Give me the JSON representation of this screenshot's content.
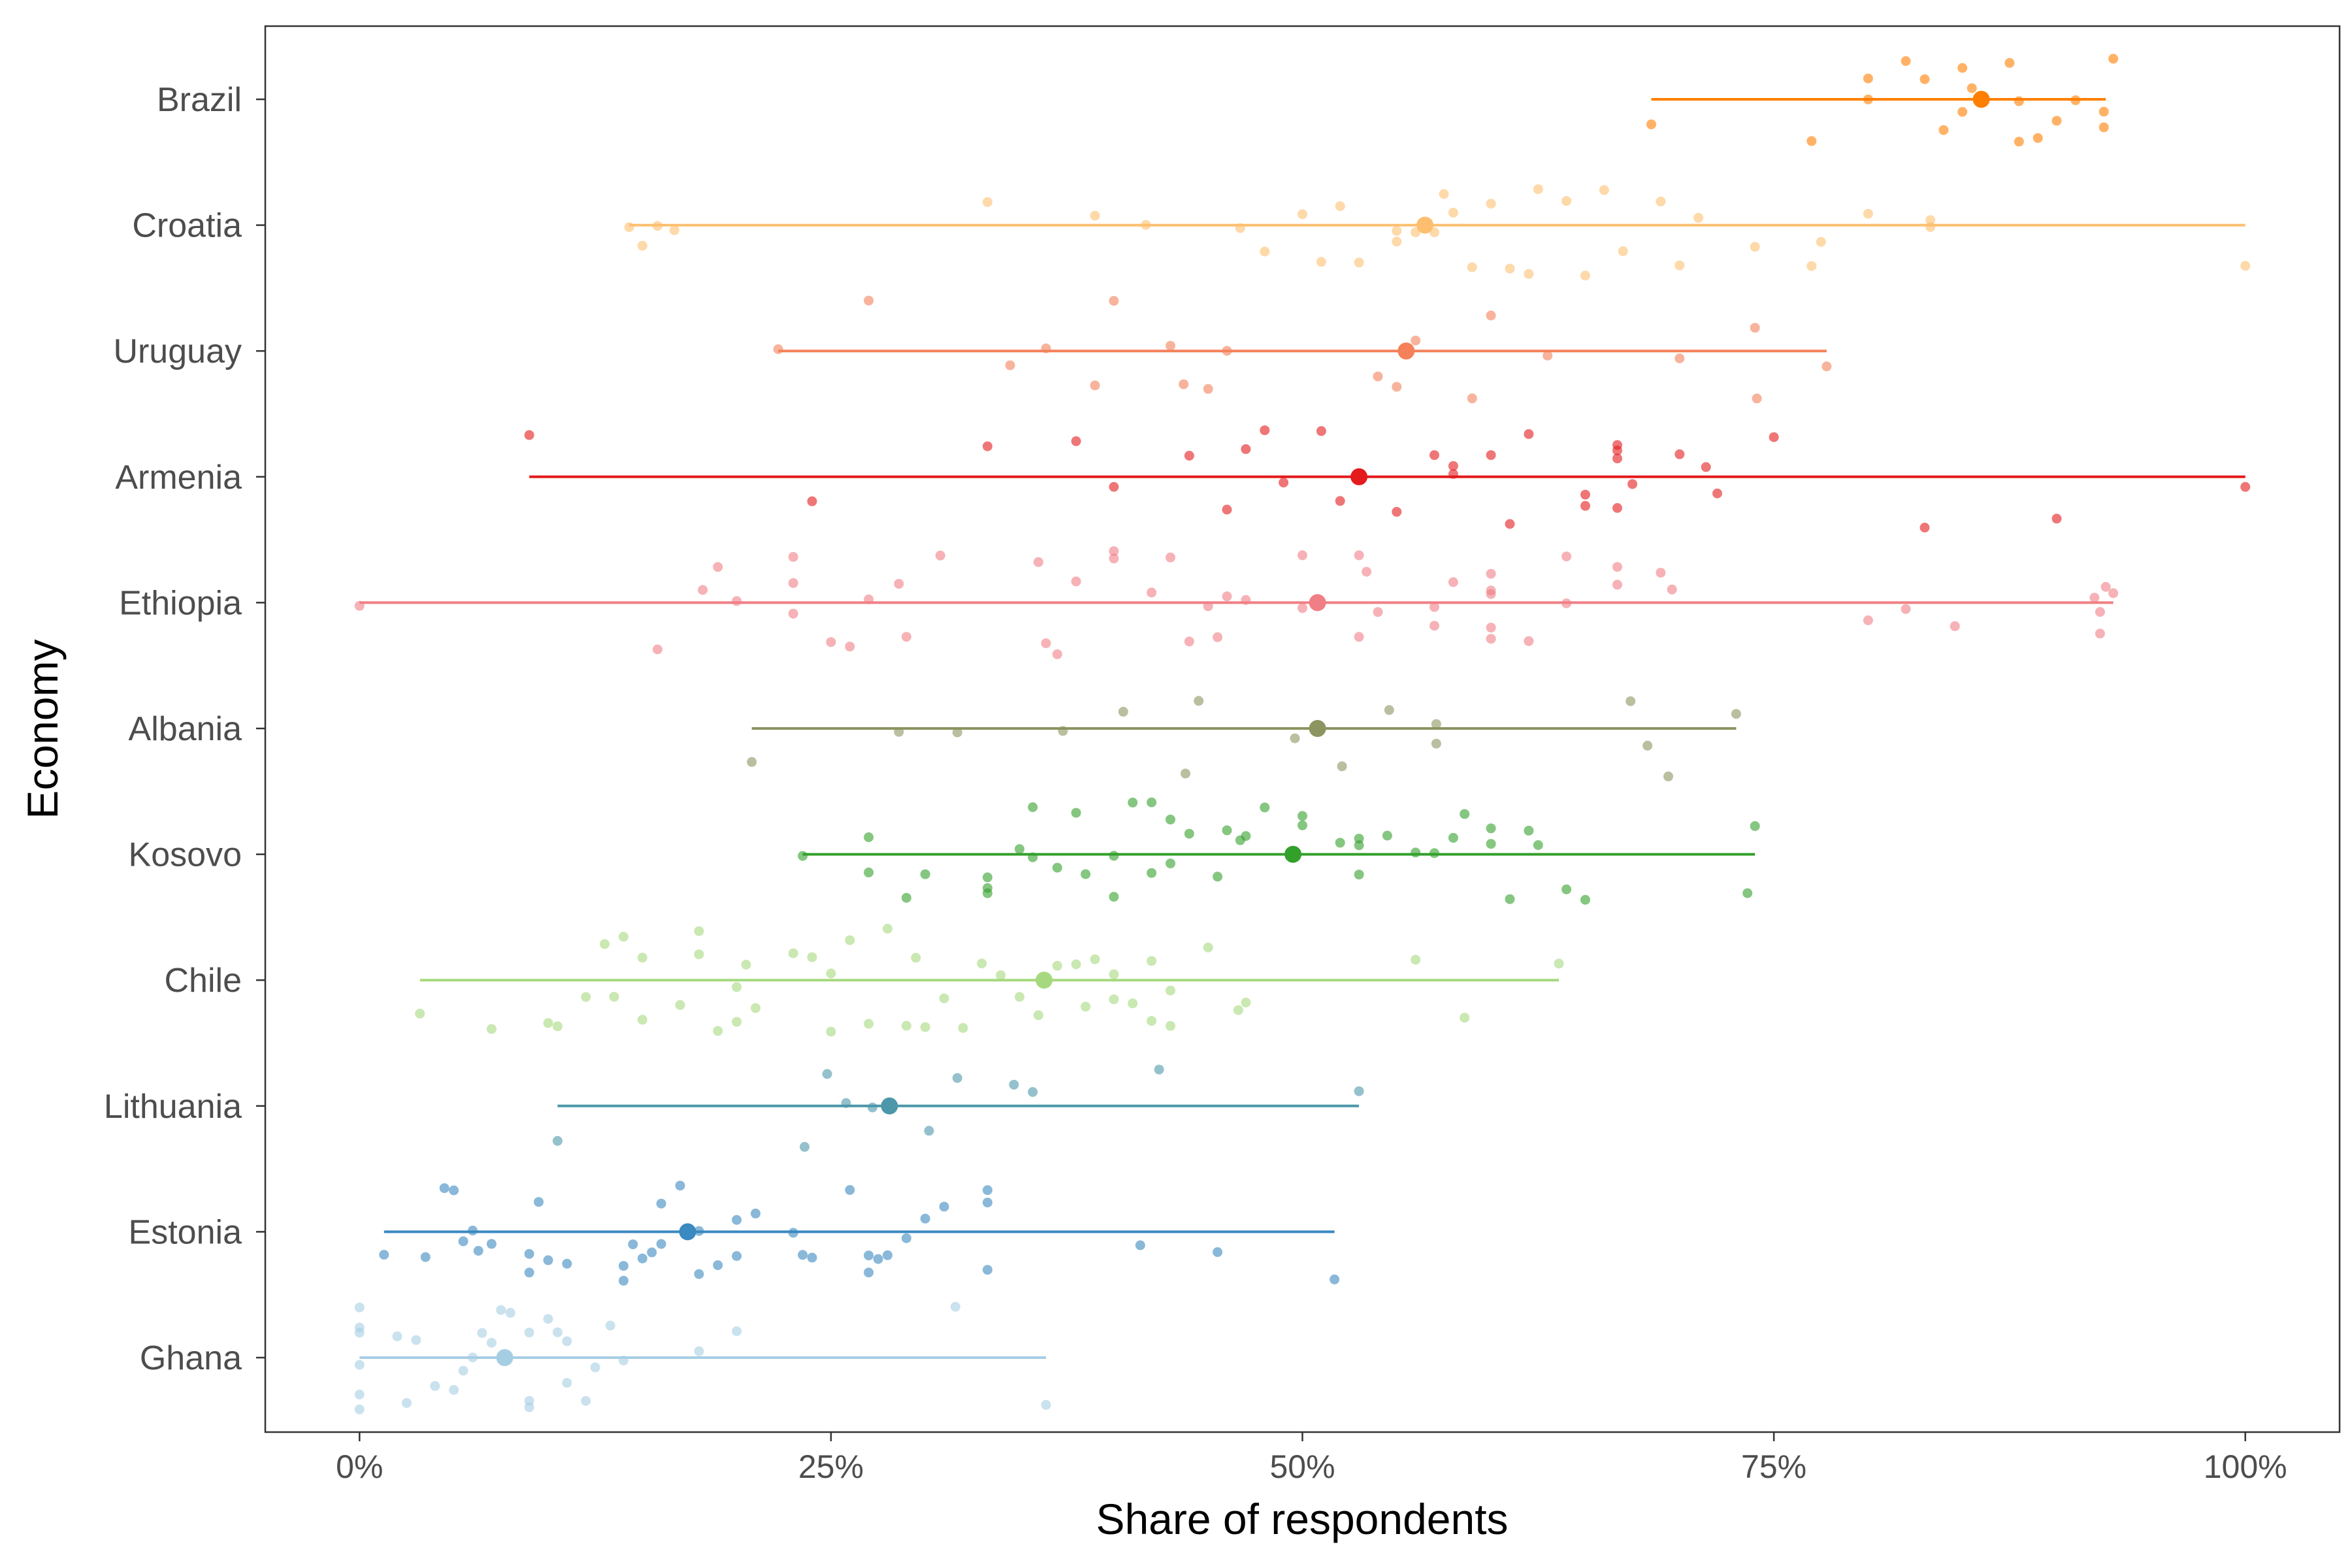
{
  "chart_data": {
    "type": "scatter",
    "title": "",
    "xlabel": "Share of respondents",
    "ylabel": "Economy",
    "xlim": [
      -0.05,
      1.05
    ],
    "xticks": [
      0,
      0.25,
      0.5,
      0.75,
      1
    ],
    "xtick_labels": [
      "0%",
      "25%",
      "50%",
      "75%",
      "100%"
    ],
    "categories": [
      "Brazil",
      "Croatia",
      "Uruguay",
      "Armenia",
      "Ethiopia",
      "Albania",
      "Kosovo",
      "Chile",
      "Lithuania",
      "Estonia",
      "Ghana"
    ],
    "grid": false,
    "legend": "none",
    "series": [
      {
        "economy": "Brazil",
        "color": "#ff7f00",
        "mean": 0.86,
        "range": [
          0.685,
          0.926
        ],
        "points": [
          0.685,
          0.77,
          0.8,
          0.8,
          0.82,
          0.83,
          0.85,
          0.84,
          0.855,
          0.85,
          0.875,
          0.88,
          0.89,
          0.88,
          0.9,
          0.91,
          0.925,
          0.925,
          0.93
        ]
      },
      {
        "economy": "Croatia",
        "color": "#fdbf6f",
        "mean": 0.565,
        "range": [
          0.143,
          1.0
        ],
        "points": [
          0.143,
          0.15,
          0.158,
          0.167,
          0.333,
          0.39,
          0.417,
          0.467,
          0.48,
          0.5,
          0.51,
          0.52,
          0.53,
          0.55,
          0.55,
          0.56,
          0.57,
          0.575,
          0.58,
          0.59,
          0.6,
          0.61,
          0.62,
          0.625,
          0.64,
          0.65,
          0.66,
          0.67,
          0.69,
          0.7,
          0.71,
          0.74,
          0.77,
          0.775,
          0.8,
          0.833,
          0.833,
          1.0
        ]
      },
      {
        "economy": "Uruguay",
        "color": "#f4815a",
        "mean": 0.555,
        "range": [
          0.222,
          0.778
        ],
        "points": [
          0.222,
          0.27,
          0.345,
          0.364,
          0.39,
          0.4,
          0.43,
          0.437,
          0.45,
          0.46,
          0.54,
          0.55,
          0.56,
          0.59,
          0.6,
          0.63,
          0.7,
          0.74,
          0.741,
          0.778
        ]
      },
      {
        "economy": "Armenia",
        "color": "#e41a1c",
        "mean": 0.53,
        "range": [
          0.09,
          1.0
        ],
        "points": [
          0.09,
          0.24,
          0.333,
          0.38,
          0.4,
          0.44,
          0.46,
          0.47,
          0.48,
          0.49,
          0.51,
          0.52,
          0.55,
          0.57,
          0.58,
          0.58,
          0.6,
          0.61,
          0.62,
          0.65,
          0.65,
          0.667,
          0.667,
          0.667,
          0.667,
          0.675,
          0.7,
          0.714,
          0.72,
          0.75,
          0.83,
          0.9,
          1.0
        ]
      },
      {
        "economy": "Ethiopia",
        "color": "#f07f85",
        "mean": 0.508,
        "range": [
          0.0,
          0.93
        ],
        "points": [
          0.0,
          0.158,
          0.182,
          0.19,
          0.2,
          0.23,
          0.23,
          0.23,
          0.25,
          0.26,
          0.27,
          0.286,
          0.29,
          0.308,
          0.36,
          0.364,
          0.37,
          0.38,
          0.4,
          0.4,
          0.42,
          0.43,
          0.44,
          0.45,
          0.455,
          0.46,
          0.47,
          0.5,
          0.5,
          0.53,
          0.534,
          0.53,
          0.54,
          0.57,
          0.57,
          0.58,
          0.6,
          0.6,
          0.6,
          0.6,
          0.6,
          0.62,
          0.64,
          0.64,
          0.667,
          0.667,
          0.69,
          0.696,
          0.8,
          0.82,
          0.846,
          0.92,
          0.923,
          0.923,
          0.926,
          0.93
        ]
      },
      {
        "economy": "Albania",
        "color": "#8c9460",
        "mean": 0.508,
        "range": [
          0.208,
          0.73
        ],
        "points": [
          0.208,
          0.286,
          0.317,
          0.373,
          0.405,
          0.438,
          0.445,
          0.496,
          0.521,
          0.546,
          0.571,
          0.571,
          0.674,
          0.683,
          0.694,
          0.73
        ]
      },
      {
        "economy": "Kosovo",
        "color": "#33a02c",
        "mean": 0.495,
        "range": [
          0.235,
          0.74
        ],
        "points": [
          0.235,
          0.27,
          0.27,
          0.29,
          0.3,
          0.333,
          0.333,
          0.333,
          0.35,
          0.357,
          0.357,
          0.37,
          0.38,
          0.385,
          0.4,
          0.4,
          0.41,
          0.42,
          0.42,
          0.43,
          0.43,
          0.44,
          0.455,
          0.46,
          0.467,
          0.47,
          0.48,
          0.5,
          0.5,
          0.52,
          0.53,
          0.53,
          0.53,
          0.545,
          0.56,
          0.57,
          0.58,
          0.586,
          0.6,
          0.6,
          0.61,
          0.62,
          0.625,
          0.64,
          0.65,
          0.736,
          0.74
        ]
      },
      {
        "economy": "Chile",
        "color": "#a6d97f",
        "mean": 0.363,
        "range": [
          0.032,
          0.636
        ],
        "points": [
          0.032,
          0.07,
          0.105,
          0.1,
          0.12,
          0.13,
          0.135,
          0.14,
          0.15,
          0.15,
          0.17,
          0.18,
          0.18,
          0.19,
          0.2,
          0.2,
          0.205,
          0.21,
          0.23,
          0.24,
          0.25,
          0.25,
          0.26,
          0.27,
          0.28,
          0.29,
          0.295,
          0.3,
          0.31,
          0.32,
          0.33,
          0.34,
          0.35,
          0.36,
          0.37,
          0.38,
          0.385,
          0.39,
          0.4,
          0.4,
          0.41,
          0.42,
          0.42,
          0.43,
          0.43,
          0.45,
          0.466,
          0.47,
          0.56,
          0.586,
          0.636
        ]
      },
      {
        "economy": "Lithuania",
        "color": "#4c97aa",
        "mean": 0.281,
        "range": [
          0.105,
          0.53
        ],
        "points": [
          0.105,
          0.236,
          0.248,
          0.258,
          0.272,
          0.302,
          0.317,
          0.347,
          0.357,
          0.424,
          0.53
        ]
      },
      {
        "economy": "Estonia",
        "color": "#3a89c0",
        "mean": 0.174,
        "range": [
          0.013,
          0.517
        ],
        "points": [
          0.013,
          0.035,
          0.045,
          0.05,
          0.055,
          0.06,
          0.063,
          0.07,
          0.09,
          0.09,
          0.095,
          0.1,
          0.11,
          0.14,
          0.14,
          0.145,
          0.15,
          0.155,
          0.16,
          0.16,
          0.17,
          0.18,
          0.18,
          0.19,
          0.2,
          0.2,
          0.21,
          0.23,
          0.235,
          0.24,
          0.26,
          0.27,
          0.27,
          0.275,
          0.28,
          0.29,
          0.3,
          0.31,
          0.333,
          0.333,
          0.333,
          0.414,
          0.455,
          0.517
        ]
      },
      {
        "economy": "Ghana",
        "color": "#a6cee3",
        "mean": 0.077,
        "range": [
          0.0,
          0.364
        ],
        "points": [
          0.0,
          0.0,
          0.0,
          0.0,
          0.0,
          0.0,
          0.02,
          0.025,
          0.03,
          0.04,
          0.05,
          0.055,
          0.06,
          0.065,
          0.07,
          0.075,
          0.08,
          0.09,
          0.09,
          0.09,
          0.1,
          0.105,
          0.11,
          0.11,
          0.12,
          0.125,
          0.133,
          0.14,
          0.18,
          0.2,
          0.316,
          0.364
        ]
      }
    ]
  }
}
